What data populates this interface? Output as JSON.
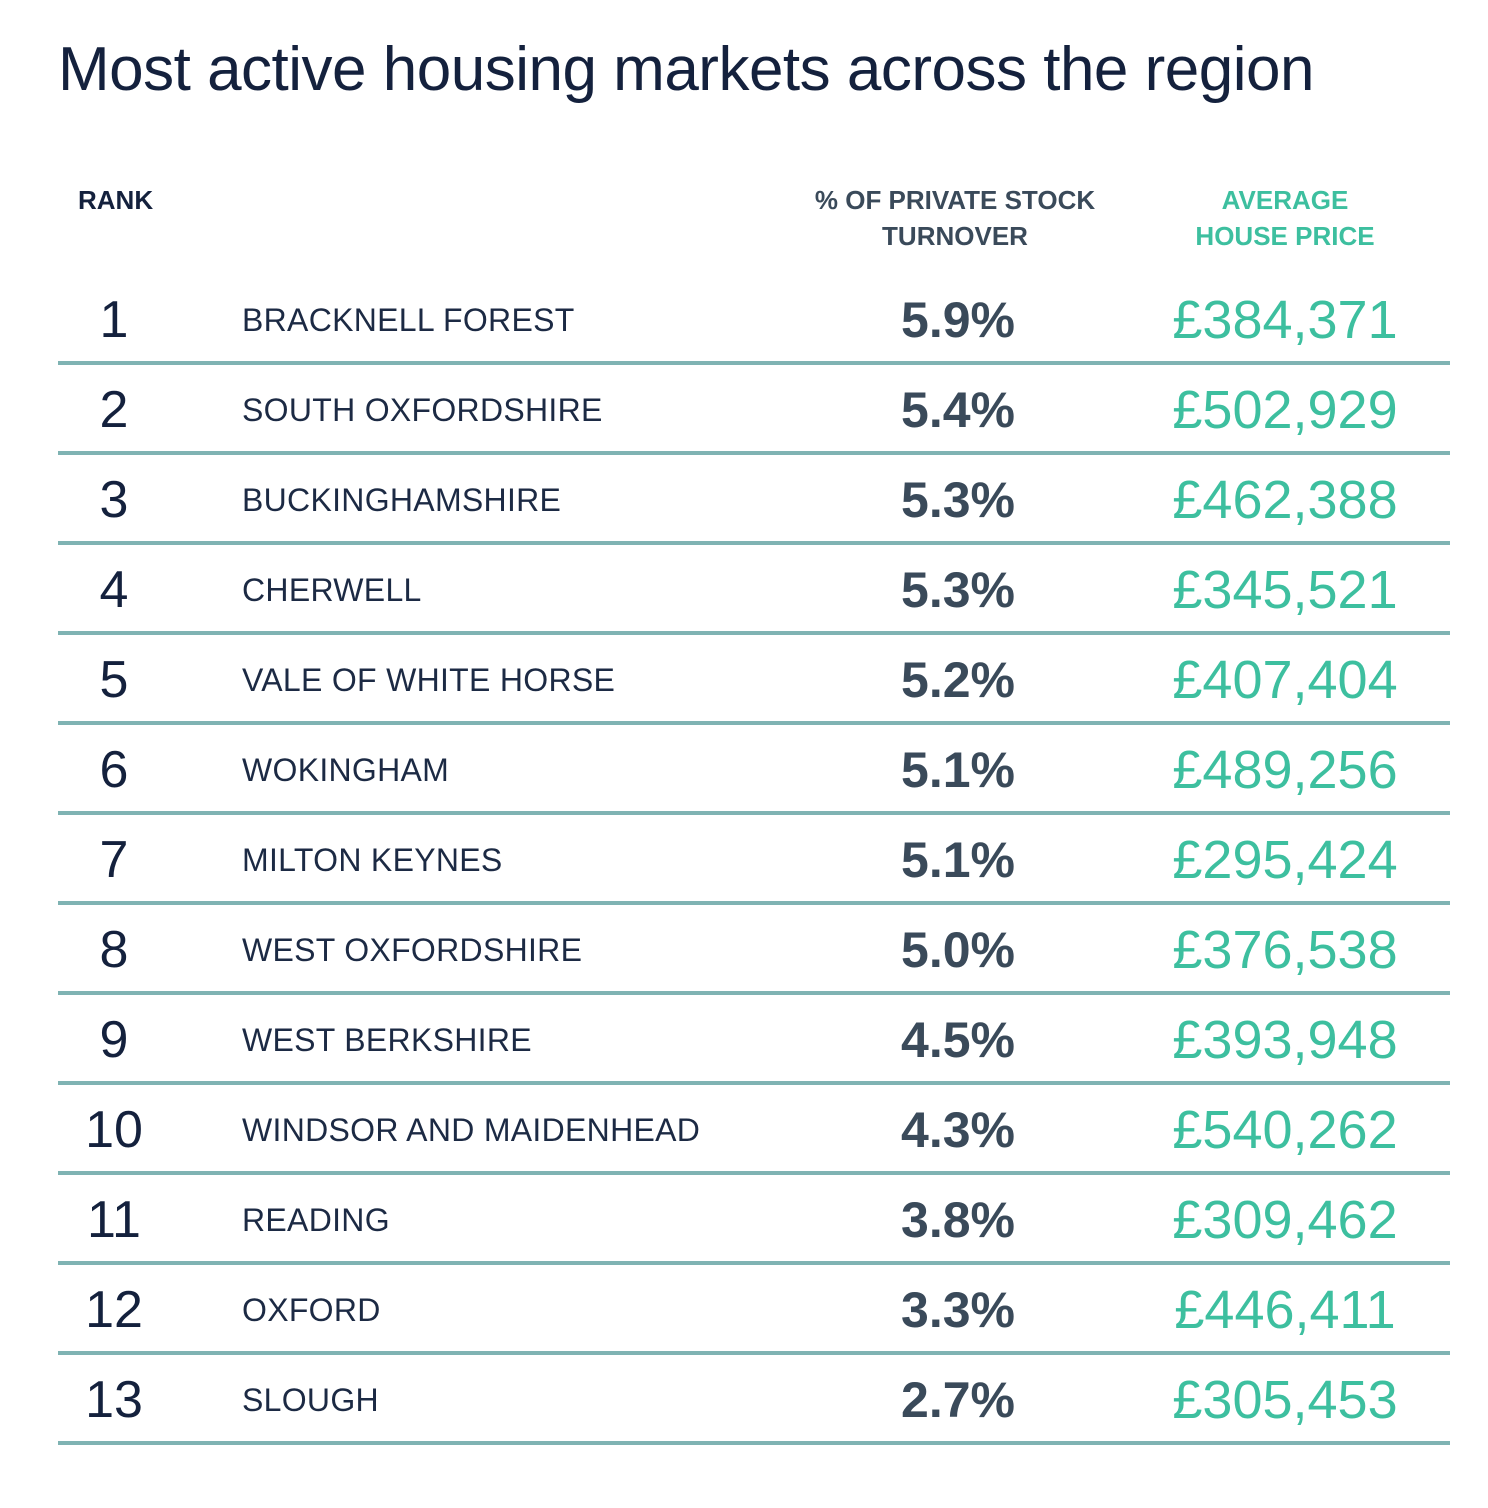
{
  "title": "Most active housing markets across the region",
  "headers": {
    "rank": "RANK",
    "turnover_line1": "% OF PRIVATE STOCK",
    "turnover_line2": "TURNOVER",
    "price_line1": "AVERAGE",
    "price_line2": "HOUSE PRICE"
  },
  "colors": {
    "navy": "#14213d",
    "slate": "#3a4a5a",
    "green": "#3dbf9f",
    "divider": "#7fb3b3"
  },
  "rows": [
    {
      "rank": "1",
      "name": "BRACKNELL FOREST",
      "turnover": "5.9%",
      "price": "£384,371"
    },
    {
      "rank": "2",
      "name": "SOUTH OXFORDSHIRE",
      "turnover": "5.4%",
      "price": "£502,929"
    },
    {
      "rank": "3",
      "name": "BUCKINGHAMSHIRE",
      "turnover": "5.3%",
      "price": "£462,388"
    },
    {
      "rank": "4",
      "name": "CHERWELL",
      "turnover": "5.3%",
      "price": "£345,521"
    },
    {
      "rank": "5",
      "name": "VALE OF WHITE HORSE",
      "turnover": "5.2%",
      "price": "£407,404"
    },
    {
      "rank": "6",
      "name": "WOKINGHAM",
      "turnover": "5.1%",
      "price": "£489,256"
    },
    {
      "rank": "7",
      "name": "MILTON KEYNES",
      "turnover": "5.1%",
      "price": "£295,424"
    },
    {
      "rank": "8",
      "name": "WEST OXFORDSHIRE",
      "turnover": "5.0%",
      "price": "£376,538"
    },
    {
      "rank": "9",
      "name": "WEST BERKSHIRE",
      "turnover": "4.5%",
      "price": "£393,948"
    },
    {
      "rank": "10",
      "name": "WINDSOR AND MAIDENHEAD",
      "turnover": "4.3%",
      "price": "£540,262"
    },
    {
      "rank": "11",
      "name": "READING",
      "turnover": "3.8%",
      "price": "£309,462"
    },
    {
      "rank": "12",
      "name": "OXFORD",
      "turnover": "3.3%",
      "price": "£446,411"
    },
    {
      "rank": "13",
      "name": "SLOUGH",
      "turnover": "2.7%",
      "price": "£305,453"
    }
  ]
}
